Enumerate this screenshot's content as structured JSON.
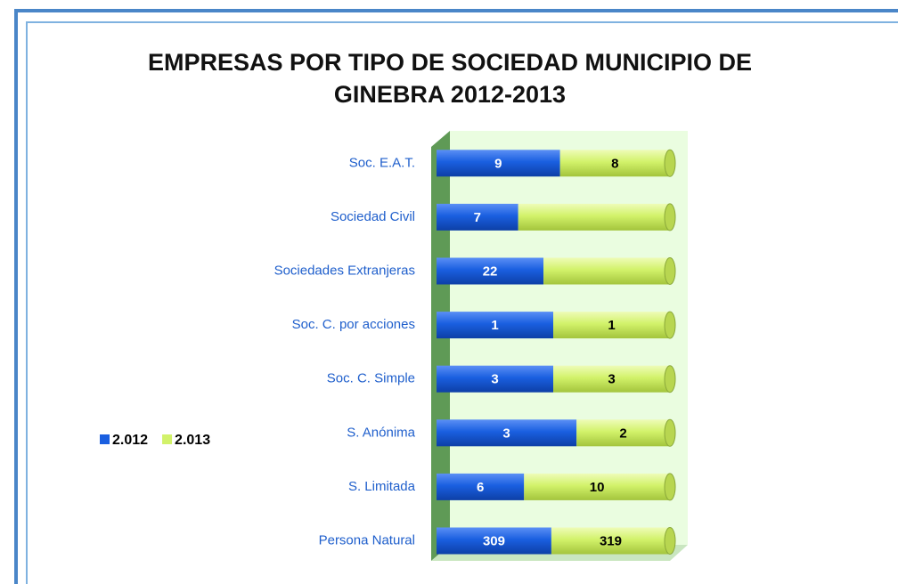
{
  "chart_data": {
    "type": "bar",
    "orientation": "horizontal",
    "stacking": "percent",
    "title": "EMPRESAS POR TIPO DE SOCIEDAD MUNICIPIO DE GINEBRA 2012-2013",
    "categories": [
      "Soc. E.A.T.",
      "Sociedad Civil",
      "Sociedades Extranjeras",
      "Soc. C. por acciones",
      "Soc. C. Simple",
      "S. Anónima",
      "S. Limitada",
      "Persona Natural"
    ],
    "series": [
      {
        "name": "2.012",
        "color": "#1a5fe0",
        "values": [
          9,
          7,
          22,
          1,
          3,
          3,
          6,
          309
        ]
      },
      {
        "name": "2.013",
        "color": "#d2f26a",
        "values": [
          8,
          13,
          26,
          1,
          3,
          2,
          10,
          319
        ],
        "value_labels": [
          "8",
          null,
          null,
          "1",
          "3",
          "2",
          "10",
          "319"
        ]
      }
    ],
    "legend": "left"
  }
}
